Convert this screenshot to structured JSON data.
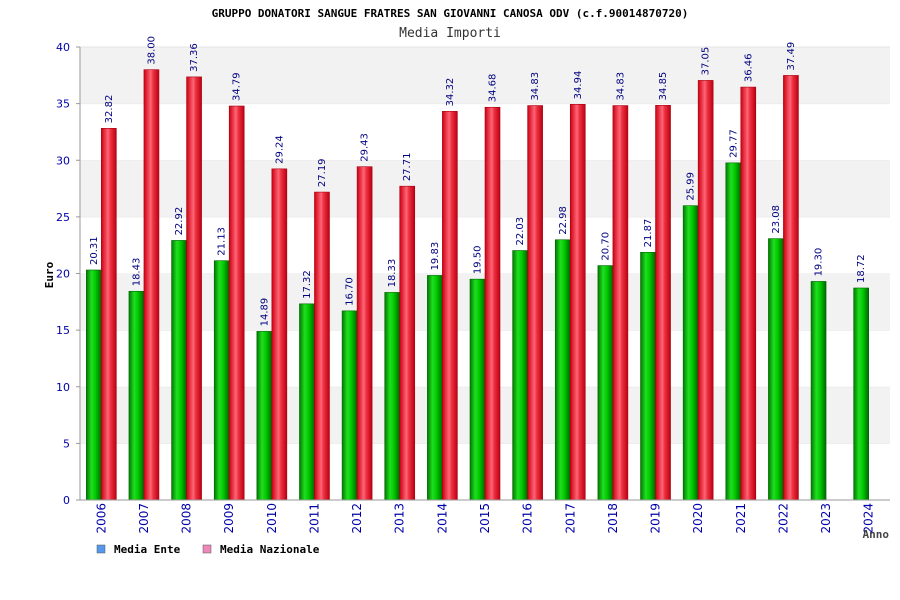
{
  "chart_data": {
    "type": "bar",
    "title": "GRUPPO DONATORI SANGUE FRATRES SAN GIOVANNI CANOSA ODV (c.f.90014870720)",
    "subtitle": "Media Importi",
    "ylabel": "Euro",
    "xlabel": "Anno",
    "ylim": [
      0,
      40
    ],
    "yticks": [
      0,
      5,
      10,
      15,
      20,
      25,
      30,
      35,
      40
    ],
    "grid": "horizontal-bands",
    "legend_placement": "bottom-left",
    "categories": [
      "2006",
      "2007",
      "2008",
      "2009",
      "2010",
      "2011",
      "2012",
      "2013",
      "2014",
      "2015",
      "2016",
      "2017",
      "2018",
      "2019",
      "2020",
      "2021",
      "2022",
      "2023",
      "2024"
    ],
    "series": [
      {
        "name": "Media Ente",
        "color": "#00bb00",
        "legend_color": "#5599ee",
        "values": [
          20.31,
          18.43,
          22.92,
          21.13,
          14.89,
          17.32,
          16.7,
          18.33,
          19.83,
          19.5,
          22.03,
          22.98,
          20.7,
          21.87,
          25.99,
          29.77,
          23.08,
          19.3,
          18.72
        ],
        "labels": [
          "20.31",
          "18.43",
          "22.92",
          "21.13",
          "14.89",
          "17.32",
          "16.70",
          "18.33",
          "19.83",
          "19.50",
          "22.03",
          "22.98",
          "20.70",
          "21.87",
          "25.99",
          "29.77",
          "23.08",
          "19.30",
          "18.72"
        ]
      },
      {
        "name": "Media Nazionale",
        "color": "#ee2233",
        "legend_color": "#ee88bb",
        "values": [
          32.82,
          38.0,
          37.36,
          34.79,
          29.24,
          27.19,
          29.43,
          27.71,
          34.32,
          34.68,
          34.83,
          34.94,
          34.83,
          34.85,
          37.05,
          36.46,
          37.49,
          null,
          null
        ],
        "labels": [
          "32.82",
          "38.00",
          "37.36",
          "34.79",
          "29.24",
          "27.19",
          "29.43",
          "27.71",
          "34.32",
          "34.68",
          "34.83",
          "34.94",
          "34.83",
          "34.85",
          "37.05",
          "36.46",
          "37.49",
          null,
          null
        ]
      }
    ]
  }
}
